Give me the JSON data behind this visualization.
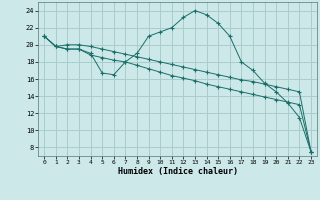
{
  "background_color": "#cce8e8",
  "grid_color": "#aacccc",
  "line_color": "#1a6e6a",
  "marker": "+",
  "xlabel": "Humidex (Indice chaleur)",
  "xlim": [
    -0.5,
    23.5
  ],
  "ylim": [
    7,
    25
  ],
  "xticks": [
    0,
    1,
    2,
    3,
    4,
    5,
    6,
    7,
    8,
    9,
    10,
    11,
    12,
    13,
    14,
    15,
    16,
    17,
    18,
    19,
    20,
    21,
    22,
    23
  ],
  "yticks": [
    8,
    10,
    12,
    14,
    16,
    18,
    20,
    22,
    24
  ],
  "line1_x": [
    0,
    1,
    2,
    3,
    4,
    5,
    6,
    7,
    8,
    9,
    10,
    11,
    12,
    13,
    14,
    15,
    16,
    17,
    18,
    19,
    20,
    21,
    22,
    23
  ],
  "line1_y": [
    21.0,
    19.8,
    19.5,
    19.5,
    19.0,
    16.7,
    16.5,
    18.0,
    19.0,
    21.0,
    21.5,
    22.0,
    23.2,
    24.0,
    23.5,
    22.5,
    21.0,
    18.0,
    17.0,
    15.5,
    14.5,
    13.2,
    11.5,
    7.5
  ],
  "line2_x": [
    0,
    1,
    2,
    3,
    4,
    5,
    6,
    7,
    8,
    9,
    10,
    11,
    12,
    13,
    14,
    15,
    16,
    17,
    18,
    19,
    20,
    21,
    22,
    23
  ],
  "line2_y": [
    21.0,
    19.8,
    19.5,
    19.5,
    18.8,
    18.5,
    18.2,
    18.0,
    17.6,
    17.2,
    16.8,
    16.4,
    16.1,
    15.8,
    15.4,
    15.1,
    14.8,
    14.5,
    14.2,
    13.9,
    13.6,
    13.3,
    13.0,
    7.5
  ],
  "line3_x": [
    0,
    1,
    2,
    3,
    4,
    5,
    6,
    7,
    8,
    9,
    10,
    11,
    12,
    13,
    14,
    15,
    16,
    17,
    18,
    19,
    20,
    21,
    22,
    23
  ],
  "line3_y": [
    21.0,
    19.8,
    20.0,
    20.0,
    19.8,
    19.5,
    19.2,
    18.9,
    18.6,
    18.3,
    18.0,
    17.7,
    17.4,
    17.1,
    16.8,
    16.5,
    16.2,
    15.9,
    15.7,
    15.4,
    15.1,
    14.8,
    14.5,
    7.5
  ]
}
